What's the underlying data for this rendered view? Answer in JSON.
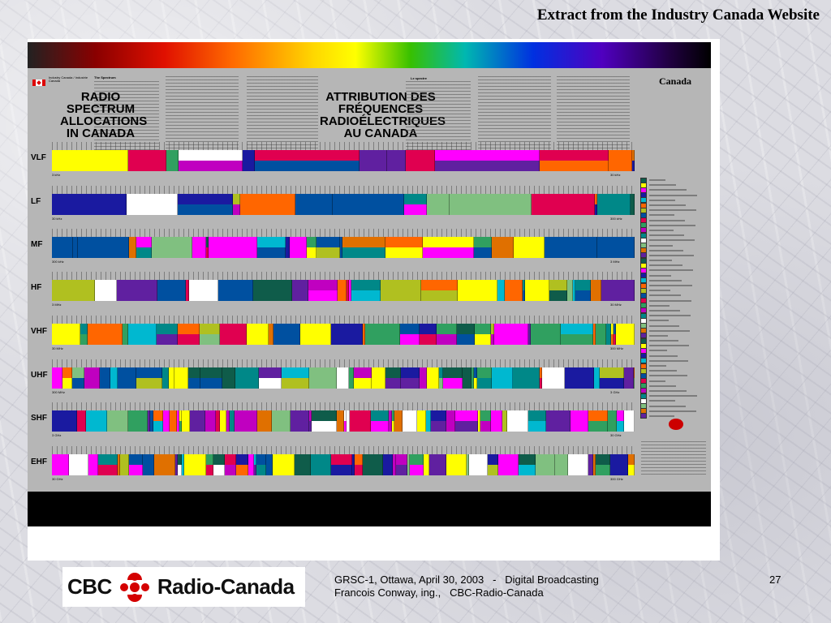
{
  "slide": {
    "title": "Extract from the Industry Canada Website",
    "footer_line1": "GRSC-1, Ottawa, April 30, 2003   -   Digital Broadcasting",
    "footer_line2": "Francois Conway, ing.,   CBC-Radio-Canada",
    "page_number": "27"
  },
  "logo": {
    "left_text": "CBC",
    "right_text": "Radio-Canada"
  },
  "poster": {
    "dept_en": "Industry Canada",
    "dept_fr": "Industrie Canada",
    "title_en": "RADIO SPECTRUM ALLOCATIONS IN CANADA",
    "title_fr": "ATTRIBUTION DES FRÉQUENCES RADIOÉLECTRIQUES AU CANADA",
    "section_en": "The Spectrum",
    "section_fr": "Le spectre",
    "wordmark": "Canada",
    "bands": [
      {
        "name": "VLF",
        "start": "3 kHz",
        "end": "30 kHz"
      },
      {
        "name": "LF",
        "start": "30 kHz",
        "end": "300 kHz"
      },
      {
        "name": "MF",
        "start": "300 kHz",
        "end": "3 MHz"
      },
      {
        "name": "HF",
        "start": "3 MHz",
        "end": "30 MHz"
      },
      {
        "name": "VHF",
        "start": "30 MHz",
        "end": "300 MHz"
      },
      {
        "name": "UHF",
        "start": "300 MHz",
        "end": "3 GHz"
      },
      {
        "name": "SHF",
        "start": "3 GHz",
        "end": "30 GHz"
      },
      {
        "name": "EHF",
        "start": "30 GHz",
        "end": "300 GHz"
      }
    ],
    "palette": [
      "#0f5c4a",
      "#ffff00",
      "#ff00ff",
      "#1a1aa0",
      "#00b8d0",
      "#ff6600",
      "#b0c020",
      "#0050a0",
      "#e00050",
      "#30a060",
      "#c000c0",
      "#008888",
      "#ffffff",
      "#80c080",
      "#e07000",
      "#6020a0"
    ]
  }
}
